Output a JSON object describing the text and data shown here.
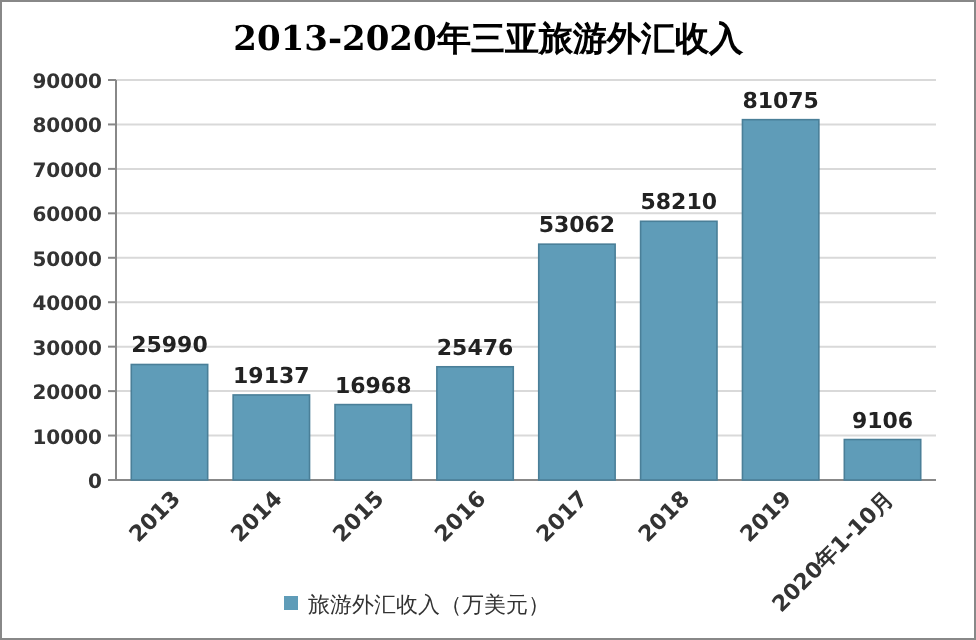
{
  "chart_data": {
    "type": "bar",
    "title": "2013-2020年三亚旅游外汇收入",
    "categories": [
      "2013",
      "2014",
      "2015",
      "2016",
      "2017",
      "2018",
      "2019",
      "2020年1-10月"
    ],
    "series": [
      {
        "name": "旅游外汇收入（万美元）",
        "color": "#5f9cb8",
        "values": [
          25990,
          19137,
          16968,
          25476,
          53062,
          58210,
          81075,
          9106
        ]
      }
    ],
    "ylim": [
      0,
      90000
    ],
    "yticks": [
      0,
      10000,
      20000,
      30000,
      40000,
      50000,
      60000,
      70000,
      80000,
      90000
    ],
    "grid": "y",
    "legend": "bottom",
    "data_labels": true
  }
}
